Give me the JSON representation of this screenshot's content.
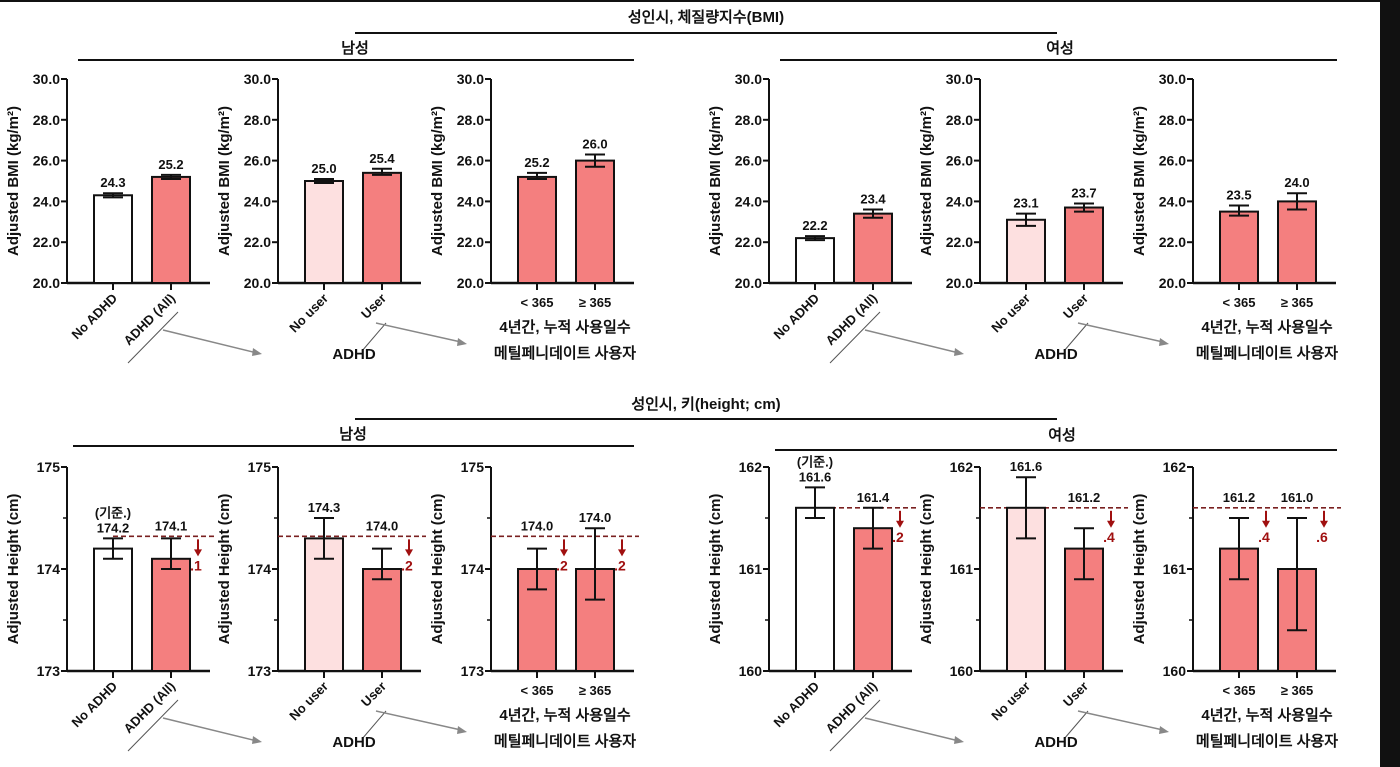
{
  "titles": {
    "bmi_title": "성인시, 체질량지수(BMI)",
    "height_title": "성인시, 키(height; cm)",
    "male": "남성",
    "female": "여성",
    "group_adhd": "ADHD",
    "group_duration_line1": "4년간, 누적 사용일수",
    "group_duration_line2": "메틸페니데이트 사용자",
    "baseline_note": "(기준.)"
  },
  "colors": {
    "no_adhd": "#ffffff",
    "no_user": "#fde0e0",
    "adhd": "#f47f7f",
    "diff": "#a01010",
    "arrow": "#888888"
  },
  "chart_data": [
    {
      "type": "bar",
      "measure": "BMI",
      "sex": "남성",
      "categories": [
        "No ADHD",
        "ADHD (All)"
      ],
      "values": [
        24.3,
        25.2
      ],
      "err_low": [
        24.2,
        25.1
      ],
      "err_high": [
        24.4,
        25.3
      ],
      "value_labels": [
        "24.3",
        "25.2"
      ],
      "ylabel": "Adjusted BMI (kg/m²)",
      "ylim": [
        20,
        30
      ],
      "yticks": [
        20,
        22,
        24,
        26,
        28,
        30
      ],
      "fills": [
        "no_adhd",
        "adhd"
      ]
    },
    {
      "type": "bar",
      "measure": "BMI",
      "sex": "남성",
      "categories": [
        "No user",
        "User"
      ],
      "values": [
        25.0,
        25.4
      ],
      "err_low": [
        24.9,
        25.3
      ],
      "err_high": [
        25.1,
        25.6
      ],
      "value_labels": [
        "25.0",
        "25.4"
      ],
      "ylabel": "Adjusted BMI (kg/m²)",
      "ylim": [
        20,
        30
      ],
      "yticks": [
        20,
        22,
        24,
        26,
        28,
        30
      ],
      "fills": [
        "no_user",
        "adhd"
      ]
    },
    {
      "type": "bar",
      "measure": "BMI",
      "sex": "남성",
      "categories": [
        "< 365",
        "≥ 365"
      ],
      "values": [
        25.2,
        26.0
      ],
      "err_low": [
        25.1,
        25.7
      ],
      "err_high": [
        25.4,
        26.3
      ],
      "value_labels": [
        "25.2",
        "26.0"
      ],
      "ylabel": "Adjusted BMI (kg/m²)",
      "ylim": [
        20,
        30
      ],
      "yticks": [
        20,
        22,
        24,
        26,
        28,
        30
      ],
      "fills": [
        "adhd",
        "adhd"
      ]
    },
    {
      "type": "bar",
      "measure": "BMI",
      "sex": "여성",
      "categories": [
        "No ADHD",
        "ADHD (All)"
      ],
      "values": [
        22.2,
        23.4
      ],
      "err_low": [
        22.1,
        23.2
      ],
      "err_high": [
        22.3,
        23.6
      ],
      "value_labels": [
        "22.2",
        "23.4"
      ],
      "ylabel": "Adjusted BMI (kg/m²)",
      "ylim": [
        20,
        30
      ],
      "yticks": [
        20,
        22,
        24,
        26,
        28,
        30
      ],
      "fills": [
        "no_adhd",
        "adhd"
      ]
    },
    {
      "type": "bar",
      "measure": "BMI",
      "sex": "여성",
      "categories": [
        "No user",
        "User"
      ],
      "values": [
        23.1,
        23.7
      ],
      "err_low": [
        22.8,
        23.5
      ],
      "err_high": [
        23.4,
        23.9
      ],
      "value_labels": [
        "23.1",
        "23.7"
      ],
      "ylabel": "Adjusted BMI (kg/m²)",
      "ylim": [
        20,
        30
      ],
      "yticks": [
        20,
        22,
        24,
        26,
        28,
        30
      ],
      "fills": [
        "no_user",
        "adhd"
      ]
    },
    {
      "type": "bar",
      "measure": "BMI",
      "sex": "여성",
      "categories": [
        "< 365",
        "≥ 365"
      ],
      "values": [
        23.5,
        24.0
      ],
      "err_low": [
        23.3,
        23.6
      ],
      "err_high": [
        23.8,
        24.4
      ],
      "value_labels": [
        "23.5",
        "24.0"
      ],
      "ylabel": "Adjusted BMI (kg/m²)",
      "ylim": [
        20,
        30
      ],
      "yticks": [
        20,
        22,
        24,
        26,
        28,
        30
      ],
      "fills": [
        "adhd",
        "adhd"
      ]
    },
    {
      "type": "bar",
      "measure": "Height",
      "sex": "남성",
      "categories": [
        "No ADHD",
        "ADHD (All)"
      ],
      "values": [
        174.2,
        174.1
      ],
      "err_low": [
        174.1,
        174.0
      ],
      "err_high": [
        174.3,
        174.3
      ],
      "value_labels": [
        "174.2",
        "174.1"
      ],
      "baseline": [
        true,
        false
      ],
      "diff_labels": [
        null,
        ".1"
      ],
      "ref_line": 174.32,
      "ylabel": "Adjusted Height (cm)",
      "ylim": [
        173,
        175
      ],
      "yticks": [
        173,
        174,
        175
      ],
      "fills": [
        "no_adhd",
        "adhd"
      ]
    },
    {
      "type": "bar",
      "measure": "Height",
      "sex": "남성",
      "categories": [
        "No user",
        "User"
      ],
      "values": [
        174.3,
        174.0
      ],
      "err_low": [
        174.1,
        173.9
      ],
      "err_high": [
        174.5,
        174.2
      ],
      "value_labels": [
        "174.3",
        "174.0"
      ],
      "diff_labels": [
        null,
        ".2"
      ],
      "ref_line": 174.32,
      "ylabel": "Adjusted Height (cm)",
      "ylim": [
        173,
        175
      ],
      "yticks": [
        173,
        174,
        175
      ],
      "fills": [
        "no_user",
        "adhd"
      ]
    },
    {
      "type": "bar",
      "measure": "Height",
      "sex": "남성",
      "categories": [
        "< 365",
        "≥ 365"
      ],
      "values": [
        174.0,
        174.0
      ],
      "err_low": [
        173.8,
        173.7
      ],
      "err_high": [
        174.2,
        174.4
      ],
      "value_labels": [
        "174.0",
        "174.0"
      ],
      "diff_labels": [
        ".2",
        ".2"
      ],
      "ref_line": 174.32,
      "ylabel": "Adjusted Height (cm)",
      "ylim": [
        173,
        175
      ],
      "yticks": [
        173,
        174,
        175
      ],
      "fills": [
        "adhd",
        "adhd"
      ]
    },
    {
      "type": "bar",
      "measure": "Height",
      "sex": "여성",
      "categories": [
        "No ADHD",
        "ADHD (All)"
      ],
      "values": [
        161.6,
        161.4
      ],
      "err_low": [
        161.5,
        161.2
      ],
      "err_high": [
        161.8,
        161.6
      ],
      "value_labels": [
        "161.6",
        "161.4"
      ],
      "baseline": [
        true,
        false
      ],
      "diff_labels": [
        null,
        ".2"
      ],
      "ref_line": 161.6,
      "ylabel": "Adjusted Height (cm)",
      "ylim": [
        160,
        162
      ],
      "yticks": [
        160,
        161,
        162
      ],
      "fills": [
        "no_adhd",
        "adhd"
      ]
    },
    {
      "type": "bar",
      "measure": "Height",
      "sex": "여성",
      "categories": [
        "No user",
        "User"
      ],
      "values": [
        161.6,
        161.2
      ],
      "err_low": [
        161.3,
        160.9
      ],
      "err_high": [
        161.9,
        161.4
      ],
      "value_labels": [
        "161.6",
        "161.2"
      ],
      "diff_labels": [
        null,
        ".4"
      ],
      "ref_line": 161.6,
      "ylabel": "Adjusted Height (cm)",
      "ylim": [
        160,
        162
      ],
      "yticks": [
        160,
        161,
        162
      ],
      "fills": [
        "no_user",
        "adhd"
      ]
    },
    {
      "type": "bar",
      "measure": "Height",
      "sex": "여성",
      "categories": [
        "< 365",
        "≥ 365"
      ],
      "values": [
        161.2,
        161.0
      ],
      "err_low": [
        160.9,
        160.4
      ],
      "err_high": [
        161.5,
        161.5
      ],
      "value_labels": [
        "161.2",
        "161.0"
      ],
      "diff_labels": [
        ".4",
        ".6"
      ],
      "ref_line": 161.6,
      "ylabel": "Adjusted Height (cm)",
      "ylim": [
        160,
        162
      ],
      "yticks": [
        160,
        161,
        162
      ],
      "fills": [
        "adhd",
        "adhd"
      ]
    }
  ]
}
